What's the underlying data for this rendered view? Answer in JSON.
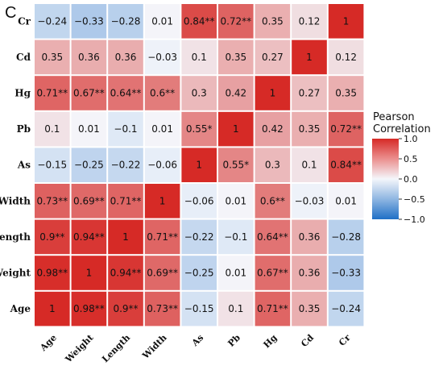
{
  "chart_data": {
    "type": "heatmap",
    "panel_label": "C",
    "rows": [
      "Cr",
      "Cd",
      "Hg",
      "Pb",
      "As",
      "Width",
      "Length",
      "Weight",
      "Age"
    ],
    "columns": [
      "Age",
      "Weight",
      "Length",
      "Width",
      "As",
      "Pb",
      "Hg",
      "Cd",
      "Cr"
    ],
    "values": [
      [
        -0.24,
        -0.33,
        -0.28,
        0.01,
        0.84,
        0.72,
        0.35,
        0.12,
        1
      ],
      [
        0.35,
        0.36,
        0.36,
        -0.03,
        0.1,
        0.35,
        0.27,
        1,
        0.12
      ],
      [
        0.71,
        0.67,
        0.64,
        0.6,
        0.3,
        0.42,
        1,
        0.27,
        0.35
      ],
      [
        0.1,
        0.01,
        -0.1,
        0.01,
        0.55,
        1,
        0.42,
        0.35,
        0.72
      ],
      [
        -0.15,
        -0.25,
        -0.22,
        -0.06,
        1,
        0.55,
        0.3,
        0.1,
        0.84
      ],
      [
        0.73,
        0.69,
        0.71,
        1,
        -0.06,
        0.01,
        0.6,
        -0.03,
        0.01
      ],
      [
        0.9,
        0.94,
        1,
        0.71,
        -0.22,
        -0.1,
        0.64,
        0.36,
        -0.28
      ],
      [
        0.98,
        1,
        0.94,
        0.69,
        -0.25,
        0.01,
        0.67,
        0.36,
        -0.33
      ],
      [
        1,
        0.98,
        0.9,
        0.73,
        -0.15,
        0.1,
        0.71,
        0.35,
        -0.24
      ]
    ],
    "labels": [
      [
        "−0.24",
        "−0.33",
        "−0.28",
        "0.01",
        "0.84**",
        "0.72**",
        "0.35",
        "0.12",
        "1"
      ],
      [
        "0.35",
        "0.36",
        "0.36",
        "−0.03",
        "0.1",
        "0.35",
        "0.27",
        "1",
        "0.12"
      ],
      [
        "0.71**",
        "0.67**",
        "0.64**",
        "0.6**",
        "0.3",
        "0.42",
        "1",
        "0.27",
        "0.35"
      ],
      [
        "0.1",
        "0.01",
        "−0.1",
        "0.01",
        "0.55*",
        "1",
        "0.42",
        "0.35",
        "0.72**"
      ],
      [
        "−0.15",
        "−0.25",
        "−0.22",
        "−0.06",
        "1",
        "0.55*",
        "0.3",
        "0.1",
        "0.84**"
      ],
      [
        "0.73**",
        "0.69**",
        "0.71**",
        "1",
        "−0.06",
        "0.01",
        "0.6**",
        "−0.03",
        "0.01"
      ],
      [
        "0.9**",
        "0.94**",
        "1",
        "0.71**",
        "−0.22",
        "−0.1",
        "0.64**",
        "0.36",
        "−0.28"
      ],
      [
        "0.98**",
        "1",
        "0.94**",
        "0.69**",
        "−0.25",
        "0.01",
        "0.67**",
        "0.36",
        "−0.33"
      ],
      [
        "1",
        "0.98**",
        "0.9**",
        "0.73**",
        "−0.15",
        "0.1",
        "0.71**",
        "0.35",
        "−0.24"
      ]
    ],
    "color_scale": {
      "title_line1": "Pearson",
      "title_line2": "Correlation",
      "range": [
        -1,
        1
      ],
      "ticks": [
        1.0,
        0.5,
        0.0,
        -0.5,
        -1.0
      ],
      "tick_labels": [
        "1.0",
        "0.5",
        "0.0",
        "−0.5",
        "−1.0"
      ],
      "colors": {
        "negative": "#1f6fc6",
        "zero": "#f4f6fb",
        "positive": "#d62a26"
      }
    },
    "legend_position": "right"
  }
}
